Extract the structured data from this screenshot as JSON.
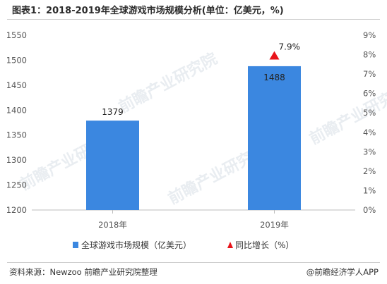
{
  "title": "图表1：2018-2019年全球游戏市场规模分析(单位：亿美元，%)",
  "source": "资料来源：Newzoo 前瞻产业研究院整理",
  "brand": "@前瞻经济学人APP",
  "watermark": "前瞻产业研究院",
  "colors": {
    "bar": "#3b87e0",
    "marker": "#e8141b",
    "axis": "#bdbdbd"
  },
  "chart_data": {
    "type": "bar",
    "categories": [
      "2018年",
      "2019年"
    ],
    "series": [
      {
        "name": "全球游戏市场规模（亿美元）",
        "axis": "left",
        "type": "bar",
        "values": [
          1379,
          1488
        ]
      },
      {
        "name": "同比增长（%）",
        "axis": "right",
        "type": "marker",
        "values": [
          null,
          7.9
        ],
        "labels": [
          "",
          "7.9%"
        ]
      }
    ],
    "ylim": [
      1200,
      1550
    ],
    "yticks": [
      "1200",
      "1250",
      "1300",
      "1350",
      "1400",
      "1450",
      "1500",
      "1550"
    ],
    "y2lim": [
      0,
      9
    ],
    "y2ticks": [
      "0%",
      "1%",
      "2%",
      "3%",
      "4%",
      "5%",
      "6%",
      "7%",
      "8%",
      "9%"
    ],
    "legend_position": "bottom"
  }
}
